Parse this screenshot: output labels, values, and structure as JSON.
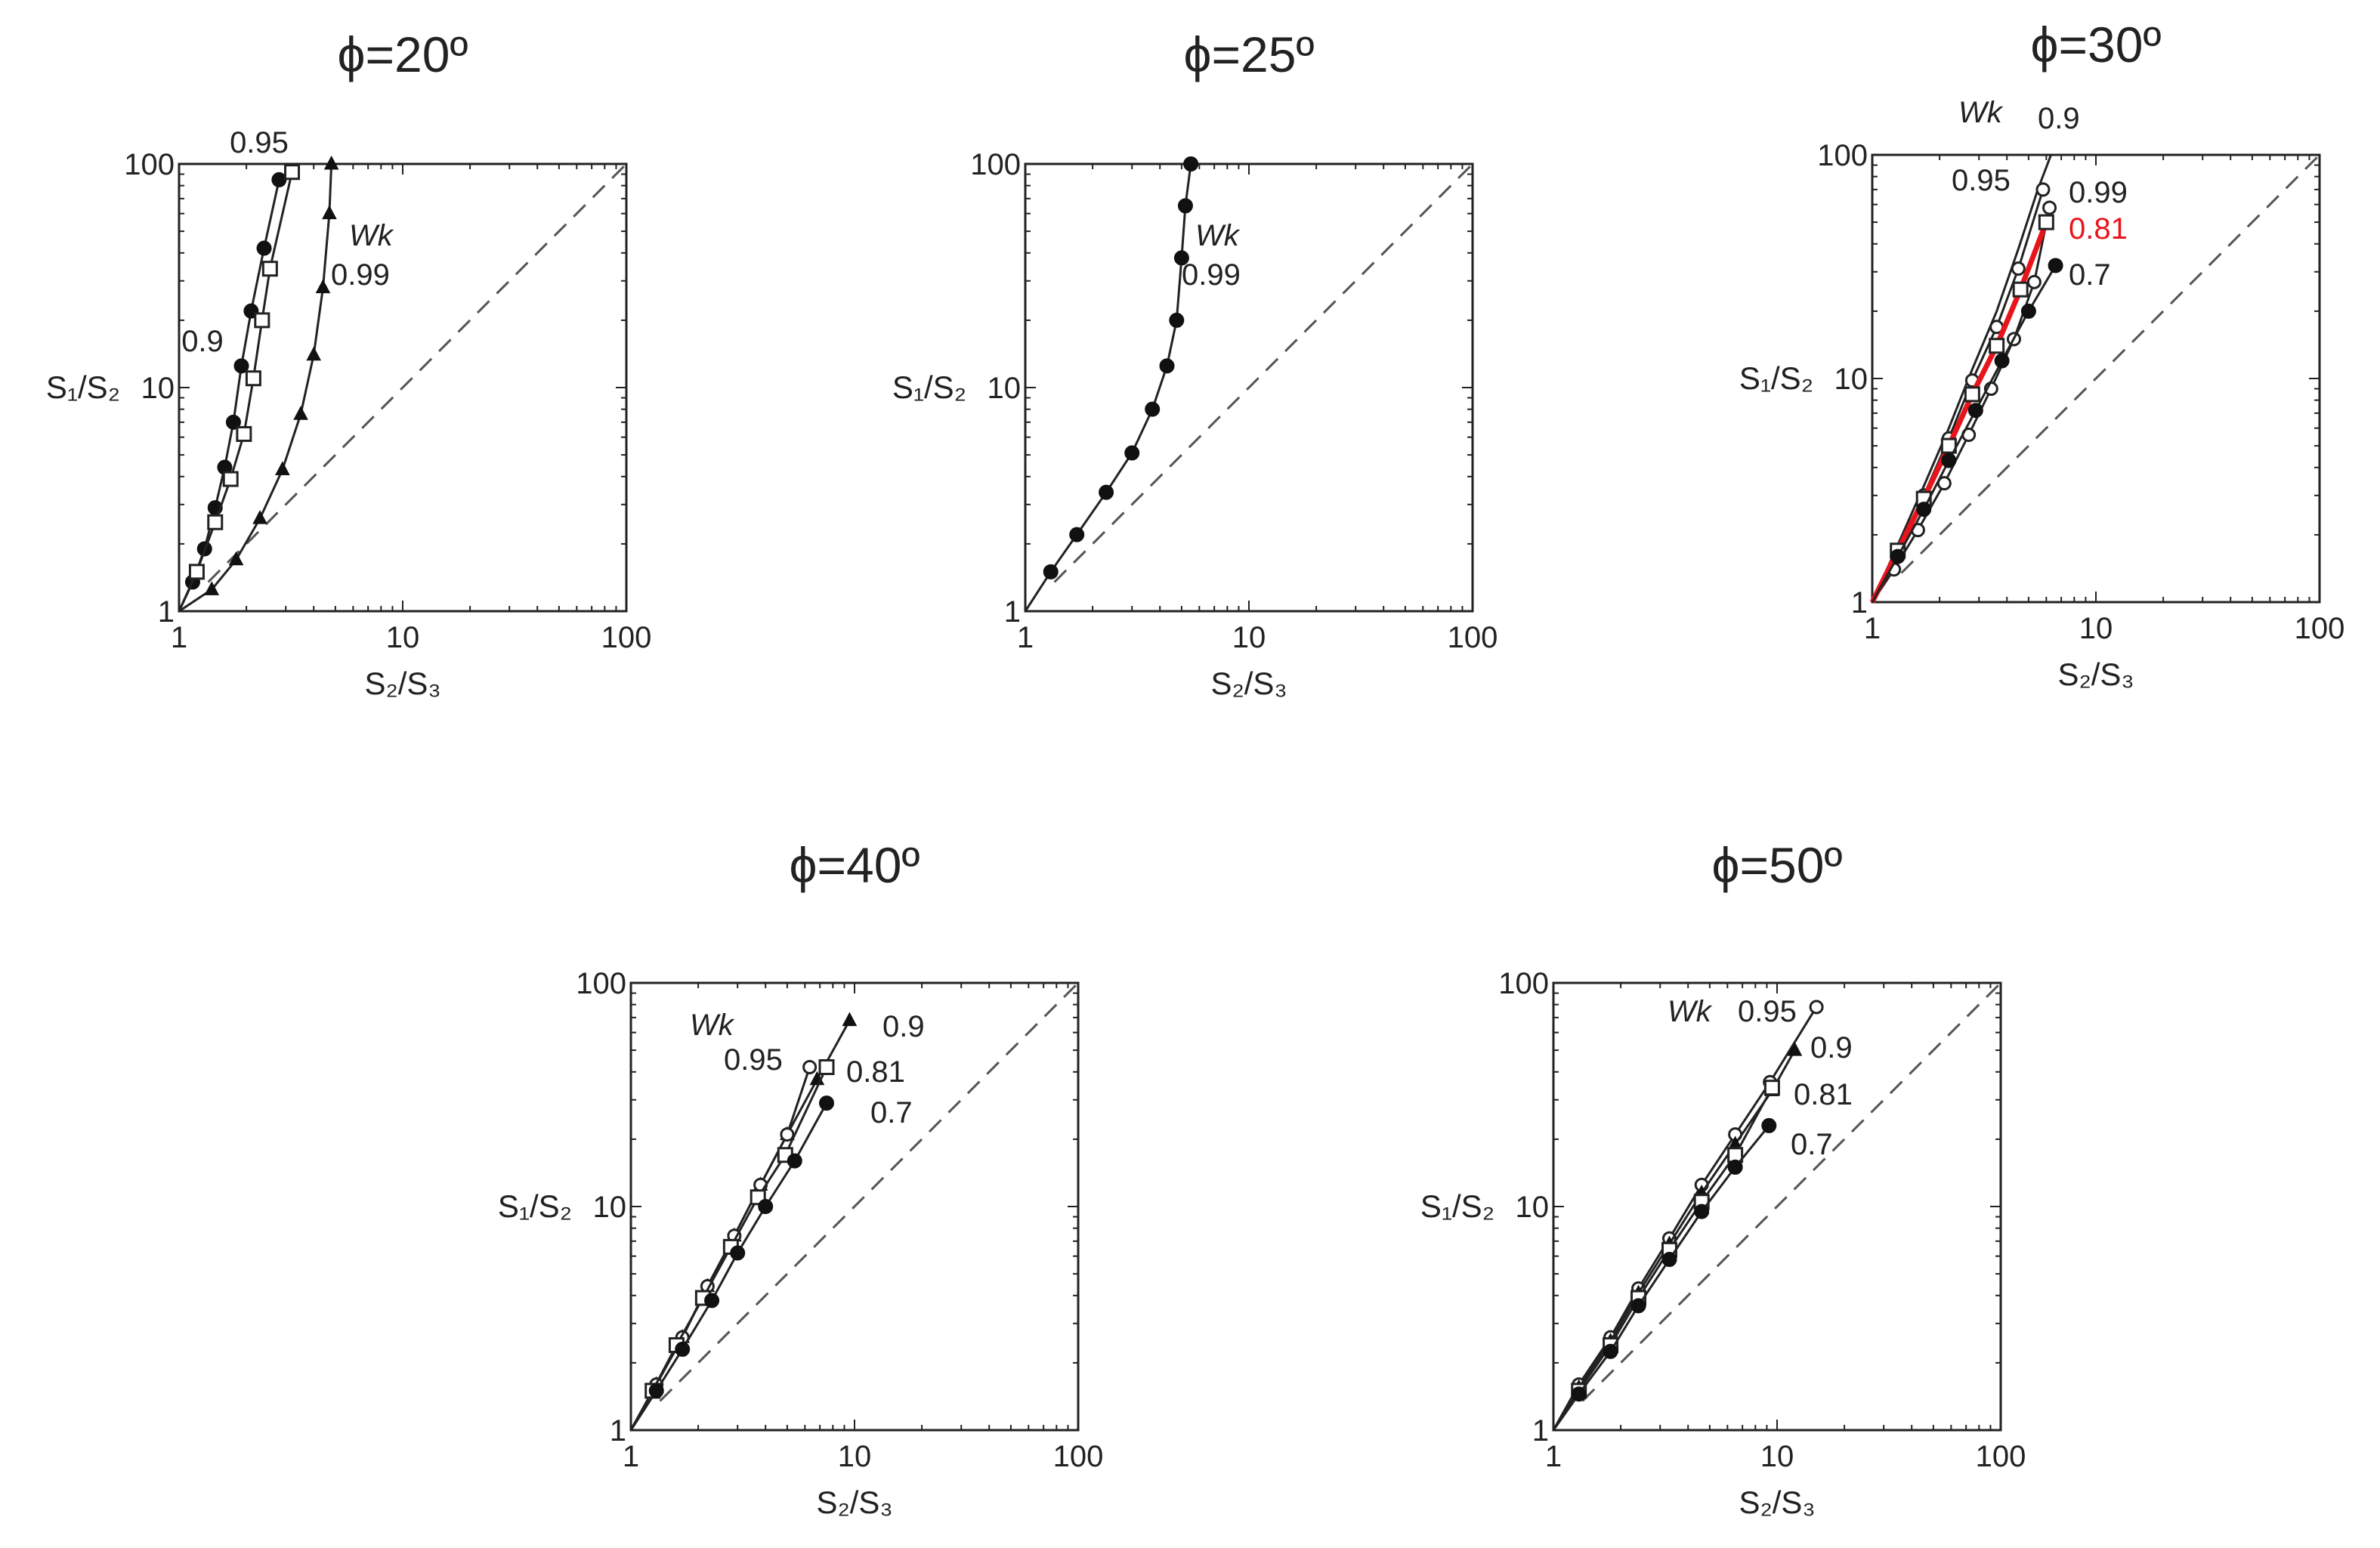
{
  "chart_data": [
    {
      "type": "line",
      "title": "ϕ=20º",
      "xlabel": "S₂/S₃",
      "ylabel": "S₁/S₂",
      "xscale": "log",
      "yscale": "log",
      "xlim": [
        1,
        100
      ],
      "ylim": [
        1,
        100
      ],
      "xticks": [
        "1",
        "10",
        "100"
      ],
      "yticks": [
        "1",
        "10",
        "100"
      ],
      "reference_line": "y = x (dashed)",
      "legend_title": "Wk",
      "series": [
        {
          "name": "0.9",
          "marker": "filled-circle",
          "x": [
            1.0,
            1.15,
            1.3,
            1.45,
            1.6,
            1.75,
            1.9,
            2.1,
            2.4,
            2.8
          ],
          "y": [
            1.0,
            1.35,
            1.9,
            2.9,
            4.4,
            7.0,
            12.5,
            22,
            42,
            85
          ]
        },
        {
          "name": "0.95",
          "marker": "open-square",
          "x": [
            1.0,
            1.2,
            1.45,
            1.7,
            1.95,
            2.15,
            2.35,
            2.55,
            3.2
          ],
          "y": [
            1.0,
            1.5,
            2.5,
            3.9,
            6.2,
            11,
            20,
            34,
            92
          ]
        },
        {
          "name": "0.99",
          "marker": "filled-triangle",
          "x": [
            1.0,
            1.4,
            1.8,
            2.3,
            2.9,
            3.5,
            4.0,
            4.4,
            4.7,
            4.8
          ],
          "y": [
            1.0,
            1.25,
            1.7,
            2.6,
            4.3,
            7.6,
            14,
            28,
            60,
            100
          ]
        }
      ],
      "annotations": [
        "0.95",
        "0.9",
        "Wk",
        "0.99"
      ]
    },
    {
      "type": "line",
      "title": "ϕ=25º",
      "xlabel": "S₂/S₃",
      "ylabel": "S₁/S₂",
      "xscale": "log",
      "yscale": "log",
      "xlim": [
        1,
        100
      ],
      "ylim": [
        1,
        100
      ],
      "xticks": [
        "1",
        "10",
        "100"
      ],
      "yticks": [
        "1",
        "10",
        "100"
      ],
      "reference_line": "y = x (dashed)",
      "legend_title": "Wk",
      "series": [
        {
          "name": "0.99",
          "marker": "filled-circle",
          "x": [
            1.0,
            1.3,
            1.7,
            2.3,
            3.0,
            3.7,
            4.3,
            4.75,
            5.0,
            5.2,
            5.5
          ],
          "y": [
            1.0,
            1.5,
            2.2,
            3.4,
            5.1,
            8.0,
            12.5,
            20,
            38,
            65,
            100
          ]
        }
      ],
      "annotations": [
        "Wk",
        "0.99"
      ]
    },
    {
      "type": "line",
      "title": "ϕ=30º",
      "xlabel": "S₂/S₃",
      "ylabel": "S₁/S₂",
      "xscale": "log",
      "yscale": "log",
      "xlim": [
        1,
        100
      ],
      "ylim": [
        1,
        100
      ],
      "xticks": [
        "1",
        "10",
        "100"
      ],
      "yticks": [
        "1",
        "10",
        "100"
      ],
      "reference_line": "y = x (dashed)",
      "legend_title": "Wk",
      "series": [
        {
          "name": "0.9",
          "marker": "none",
          "x": [
            1.0,
            1.3,
            1.7,
            2.2,
            2.8,
            3.6,
            4.5,
            5.5,
            6.3
          ],
          "y": [
            1.0,
            1.8,
            3.3,
            6.0,
            11,
            20,
            38,
            70,
            100
          ]
        },
        {
          "name": "0.95",
          "marker": "open-circle",
          "x": [
            1.0,
            1.3,
            1.7,
            2.2,
            2.8,
            3.6,
            4.5,
            5.8
          ],
          "y": [
            1.0,
            1.7,
            3.0,
            5.4,
            9.8,
            17,
            31,
            70
          ]
        },
        {
          "name": "0.99",
          "marker": "open-circle",
          "x": [
            1.0,
            1.25,
            1.6,
            2.1,
            2.7,
            3.4,
            4.3,
            5.3,
            6.2
          ],
          "y": [
            1.0,
            1.4,
            2.1,
            3.4,
            5.6,
            9.0,
            15,
            27,
            58
          ]
        },
        {
          "name": "0.81",
          "marker": "open-square",
          "color": "#e8141c",
          "x": [
            1.0,
            1.3,
            1.7,
            2.2,
            2.8,
            3.6,
            4.6,
            6.0
          ],
          "y": [
            1.0,
            1.7,
            2.9,
            5.0,
            8.5,
            14,
            25,
            50
          ]
        },
        {
          "name": "0.7",
          "marker": "filled-circle",
          "x": [
            1.0,
            1.3,
            1.7,
            2.2,
            2.9,
            3.8,
            5.0,
            6.6
          ],
          "y": [
            1.0,
            1.6,
            2.6,
            4.3,
            7.2,
            12,
            20,
            32
          ]
        }
      ],
      "annotations": [
        "Wk",
        "0.9",
        "0.95",
        "0.99",
        "0.81",
        "0.7"
      ]
    },
    {
      "type": "line",
      "title": "ϕ=40º",
      "xlabel": "S₂/S₃",
      "ylabel": "S₁/S₂",
      "xscale": "log",
      "yscale": "log",
      "xlim": [
        1,
        100
      ],
      "ylim": [
        1,
        100
      ],
      "xticks": [
        "1",
        "10",
        "100"
      ],
      "yticks": [
        "1",
        "10",
        "100"
      ],
      "reference_line": "y = x (dashed)",
      "legend_title": "Wk",
      "series": [
        {
          "name": "0.9",
          "marker": "filled-triangle",
          "x": [
            1.0,
            1.3,
            1.7,
            2.2,
            2.9,
            3.8,
            5.0,
            6.8,
            9.5
          ],
          "y": [
            1.0,
            1.6,
            2.6,
            4.4,
            7.4,
            12.5,
            21,
            37,
            68
          ]
        },
        {
          "name": "0.95",
          "marker": "open-circle",
          "x": [
            1.0,
            1.3,
            1.7,
            2.2,
            2.9,
            3.8,
            5.0,
            6.3
          ],
          "y": [
            1.0,
            1.6,
            2.6,
            4.4,
            7.4,
            12.5,
            21,
            42
          ]
        },
        {
          "name": "0.81",
          "marker": "open-square",
          "x": [
            1.0,
            1.25,
            1.6,
            2.1,
            2.8,
            3.7,
            4.9,
            7.5
          ],
          "y": [
            1.0,
            1.5,
            2.4,
            3.9,
            6.6,
            11,
            17,
            42
          ]
        },
        {
          "name": "0.7",
          "marker": "filled-circle",
          "x": [
            1.0,
            1.3,
            1.7,
            2.3,
            3.0,
            4.0,
            5.4,
            7.5
          ],
          "y": [
            1.0,
            1.5,
            2.3,
            3.8,
            6.2,
            10,
            16,
            29
          ]
        }
      ],
      "annotations": [
        "Wk",
        "0.95",
        "0.9",
        "0.81",
        "0.7"
      ]
    },
    {
      "type": "line",
      "title": "ϕ=50º",
      "xlabel": "S₂/S₃",
      "ylabel": "S₁/S₂",
      "xscale": "log",
      "yscale": "log",
      "xlim": [
        1,
        100
      ],
      "ylim": [
        1,
        100
      ],
      "xticks": [
        "1",
        "10",
        "100"
      ],
      "yticks": [
        "1",
        "10",
        "100"
      ],
      "reference_line": "y = x (dashed)",
      "legend_title": "Wk",
      "series": [
        {
          "name": "0.95",
          "marker": "open-circle",
          "x": [
            1.0,
            1.3,
            1.8,
            2.4,
            3.3,
            4.6,
            6.5,
            9.3,
            15
          ],
          "y": [
            1.0,
            1.6,
            2.6,
            4.3,
            7.2,
            12.5,
            21,
            36,
            78
          ]
        },
        {
          "name": "0.9",
          "marker": "filled-triangle",
          "x": [
            1.0,
            1.3,
            1.8,
            2.4,
            3.3,
            4.6,
            6.5,
            9.5,
            12
          ],
          "y": [
            1.0,
            1.55,
            2.5,
            4.1,
            6.8,
            11.5,
            19,
            33,
            50
          ]
        },
        {
          "name": "0.81",
          "marker": "open-square",
          "x": [
            1.0,
            1.3,
            1.8,
            2.4,
            3.3,
            4.6,
            6.5,
            9.5
          ],
          "y": [
            1.0,
            1.5,
            2.4,
            3.9,
            6.4,
            10.5,
            17,
            34
          ]
        },
        {
          "name": "0.7",
          "marker": "filled-circle",
          "x": [
            1.0,
            1.3,
            1.8,
            2.4,
            3.3,
            4.6,
            6.5,
            9.2
          ],
          "y": [
            1.0,
            1.45,
            2.25,
            3.6,
            5.8,
            9.5,
            15,
            23
          ]
        }
      ],
      "annotations": [
        "Wk",
        "0.95",
        "0.9",
        "0.81",
        "0.7"
      ]
    }
  ]
}
